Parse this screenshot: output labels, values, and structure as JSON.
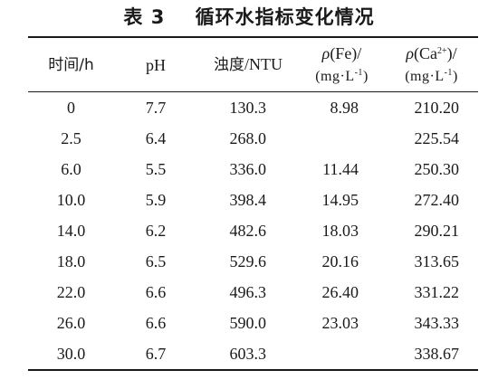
{
  "title": "表 3    循环水指标变化情况",
  "headers": {
    "time": "时间/h",
    "ph": "pH",
    "turbidity_cjk": "浊度",
    "turbidity_unit": "/NTU",
    "fe_rho": "ρ",
    "fe_label": "(Fe)/",
    "fe_unit": "(mg·L",
    "fe_exp": "-1",
    "fe_close": ")",
    "ca_rho": "ρ",
    "ca_label_a": "(Ca",
    "ca_sup": "2+",
    "ca_label_b": ")/",
    "ca_unit": "(mg·L",
    "ca_exp": "-1",
    "ca_close": ")"
  },
  "rows": [
    {
      "time": "0",
      "ph": "7.7",
      "turbidity": "130.3",
      "fe": "8.98",
      "ca": "210.20"
    },
    {
      "time": "2.5",
      "ph": "6.4",
      "turbidity": "268.0",
      "fe": "",
      "ca": "225.54"
    },
    {
      "time": "6.0",
      "ph": "5.5",
      "turbidity": "336.0",
      "fe": "11.44",
      "ca": "250.30"
    },
    {
      "time": "10.0",
      "ph": "5.9",
      "turbidity": "398.4",
      "fe": "14.95",
      "ca": "272.40"
    },
    {
      "time": "14.0",
      "ph": "6.2",
      "turbidity": "482.6",
      "fe": "18.03",
      "ca": "290.21"
    },
    {
      "time": "18.0",
      "ph": "6.5",
      "turbidity": "529.6",
      "fe": "20.16",
      "ca": "313.65"
    },
    {
      "time": "22.0",
      "ph": "6.6",
      "turbidity": "496.3",
      "fe": "26.40",
      "ca": "331.22"
    },
    {
      "time": "26.0",
      "ph": "6.6",
      "turbidity": "590.0",
      "fe": "23.03",
      "ca": "343.33"
    },
    {
      "time": "30.0",
      "ph": "6.7",
      "turbidity": "603.3",
      "fe": "",
      "ca": "338.67"
    }
  ]
}
